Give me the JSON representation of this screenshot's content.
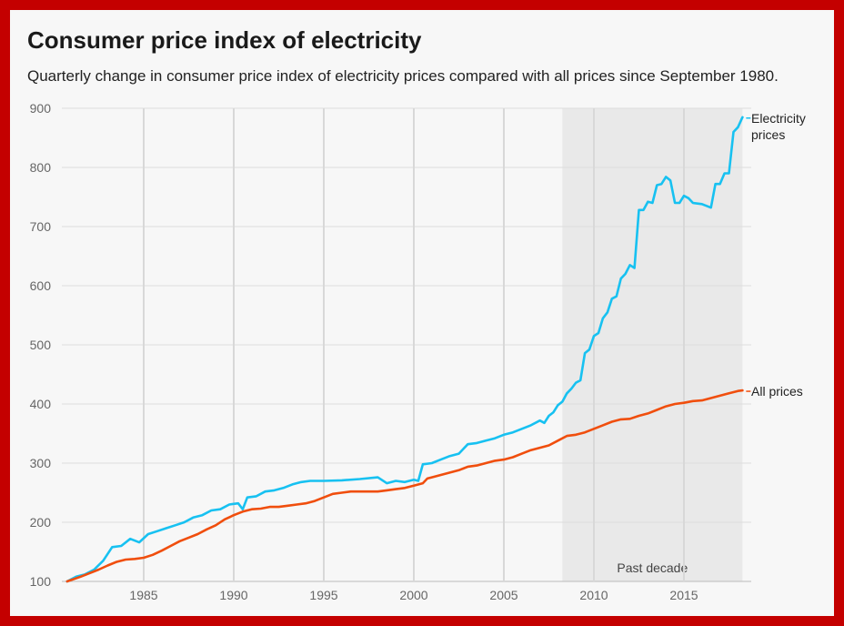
{
  "chart_data": {
    "type": "line",
    "title": "Consumer price index of electricity",
    "subtitle": "Quarterly change in consumer price index of electricity prices compared with all prices since September 1980.",
    "xlim": [
      1980.75,
      2018.5
    ],
    "ylim": [
      100,
      900
    ],
    "x_ticks": [
      "1985",
      "1990",
      "1995",
      "2000",
      "2005",
      "2010",
      "2015"
    ],
    "y_ticks": [
      "100",
      "200",
      "300",
      "400",
      "500",
      "600",
      "700",
      "800",
      "900"
    ],
    "grid": true,
    "shaded_region": {
      "label": "Past decade",
      "x_range": [
        2008.25,
        2018.25
      ]
    },
    "series": [
      {
        "name": "Electricity prices",
        "label_lines": [
          "Electricity",
          "prices"
        ],
        "color": "#17c1f1",
        "points": [
          [
            1980.75,
            100
          ],
          [
            1981.25,
            108
          ],
          [
            1981.75,
            112
          ],
          [
            1982.25,
            120
          ],
          [
            1982.75,
            135
          ],
          [
            1983.25,
            158
          ],
          [
            1983.75,
            160
          ],
          [
            1984.25,
            172
          ],
          [
            1984.75,
            166
          ],
          [
            1985.25,
            180
          ],
          [
            1985.75,
            185
          ],
          [
            1986.25,
            190
          ],
          [
            1986.75,
            195
          ],
          [
            1987.25,
            200
          ],
          [
            1987.75,
            208
          ],
          [
            1988.25,
            212
          ],
          [
            1988.75,
            220
          ],
          [
            1989.25,
            222
          ],
          [
            1989.75,
            230
          ],
          [
            1990.25,
            232
          ],
          [
            1990.5,
            222
          ],
          [
            1990.75,
            242
          ],
          [
            1991.25,
            244
          ],
          [
            1991.75,
            252
          ],
          [
            1992.25,
            254
          ],
          [
            1992.75,
            258
          ],
          [
            1993.25,
            264
          ],
          [
            1993.75,
            268
          ],
          [
            1994.25,
            270
          ],
          [
            1995,
            270
          ],
          [
            1996,
            271
          ],
          [
            1997,
            273
          ],
          [
            1998,
            276
          ],
          [
            1998.5,
            266
          ],
          [
            1999,
            270
          ],
          [
            1999.5,
            268
          ],
          [
            2000,
            272
          ],
          [
            2000.25,
            270
          ],
          [
            2000.5,
            298
          ],
          [
            2001,
            300
          ],
          [
            2001.5,
            306
          ],
          [
            2002,
            312
          ],
          [
            2002.5,
            316
          ],
          [
            2003,
            332
          ],
          [
            2003.5,
            334
          ],
          [
            2004,
            338
          ],
          [
            2004.5,
            342
          ],
          [
            2005,
            348
          ],
          [
            2005.5,
            352
          ],
          [
            2006,
            358
          ],
          [
            2006.5,
            364
          ],
          [
            2007,
            372
          ],
          [
            2007.25,
            368
          ],
          [
            2007.5,
            380
          ],
          [
            2007.75,
            386
          ],
          [
            2008,
            398
          ],
          [
            2008.25,
            404
          ],
          [
            2008.5,
            418
          ],
          [
            2008.75,
            426
          ],
          [
            2009,
            436
          ],
          [
            2009.25,
            440
          ],
          [
            2009.5,
            486
          ],
          [
            2009.75,
            492
          ],
          [
            2010,
            515
          ],
          [
            2010.25,
            520
          ],
          [
            2010.5,
            545
          ],
          [
            2010.75,
            555
          ],
          [
            2011,
            578
          ],
          [
            2011.25,
            582
          ],
          [
            2011.5,
            612
          ],
          [
            2011.75,
            620
          ],
          [
            2012,
            635
          ],
          [
            2012.25,
            630
          ],
          [
            2012.5,
            728
          ],
          [
            2012.75,
            728
          ],
          [
            2013,
            742
          ],
          [
            2013.25,
            740
          ],
          [
            2013.5,
            770
          ],
          [
            2013.75,
            772
          ],
          [
            2014,
            784
          ],
          [
            2014.25,
            778
          ],
          [
            2014.5,
            740
          ],
          [
            2014.75,
            740
          ],
          [
            2015,
            752
          ],
          [
            2015.25,
            748
          ],
          [
            2015.5,
            740
          ],
          [
            2016,
            738
          ],
          [
            2016.5,
            732
          ],
          [
            2016.75,
            772
          ],
          [
            2017,
            772
          ],
          [
            2017.25,
            790
          ],
          [
            2017.5,
            790
          ],
          [
            2017.75,
            860
          ],
          [
            2018,
            868
          ],
          [
            2018.25,
            885
          ]
        ]
      },
      {
        "name": "All prices",
        "label_lines": [
          "All prices"
        ],
        "color": "#f04e0d",
        "points": [
          [
            1980.75,
            100
          ],
          [
            1981.5,
            108
          ],
          [
            1982,
            114
          ],
          [
            1982.5,
            120
          ],
          [
            1983,
            127
          ],
          [
            1983.5,
            133
          ],
          [
            1984,
            137
          ],
          [
            1984.5,
            138
          ],
          [
            1985,
            140
          ],
          [
            1985.5,
            145
          ],
          [
            1986,
            152
          ],
          [
            1986.5,
            160
          ],
          [
            1987,
            168
          ],
          [
            1987.5,
            174
          ],
          [
            1988,
            180
          ],
          [
            1988.5,
            188
          ],
          [
            1989,
            195
          ],
          [
            1989.5,
            205
          ],
          [
            1990,
            212
          ],
          [
            1990.5,
            218
          ],
          [
            1991,
            222
          ],
          [
            1991.5,
            223
          ],
          [
            1992,
            226
          ],
          [
            1992.5,
            226
          ],
          [
            1993,
            228
          ],
          [
            1993.5,
            230
          ],
          [
            1994,
            232
          ],
          [
            1994.5,
            236
          ],
          [
            1995,
            242
          ],
          [
            1995.5,
            248
          ],
          [
            1996,
            250
          ],
          [
            1996.5,
            252
          ],
          [
            1997,
            252
          ],
          [
            1997.5,
            252
          ],
          [
            1998,
            252
          ],
          [
            1998.5,
            254
          ],
          [
            1999,
            256
          ],
          [
            1999.5,
            258
          ],
          [
            2000,
            262
          ],
          [
            2000.5,
            266
          ],
          [
            2000.75,
            274
          ],
          [
            2001,
            276
          ],
          [
            2001.5,
            280
          ],
          [
            2002,
            284
          ],
          [
            2002.5,
            288
          ],
          [
            2003,
            294
          ],
          [
            2003.5,
            296
          ],
          [
            2004,
            300
          ],
          [
            2004.5,
            304
          ],
          [
            2005,
            306
          ],
          [
            2005.5,
            310
          ],
          [
            2006,
            316
          ],
          [
            2006.5,
            322
          ],
          [
            2007,
            326
          ],
          [
            2007.5,
            330
          ],
          [
            2008,
            338
          ],
          [
            2008.5,
            346
          ],
          [
            2009,
            348
          ],
          [
            2009.5,
            352
          ],
          [
            2010,
            358
          ],
          [
            2010.5,
            364
          ],
          [
            2011,
            370
          ],
          [
            2011.5,
            374
          ],
          [
            2012,
            375
          ],
          [
            2012.5,
            380
          ],
          [
            2013,
            384
          ],
          [
            2013.5,
            390
          ],
          [
            2014,
            396
          ],
          [
            2014.5,
            400
          ],
          [
            2015,
            402
          ],
          [
            2015.5,
            405
          ],
          [
            2016,
            406
          ],
          [
            2016.5,
            410
          ],
          [
            2017,
            414
          ],
          [
            2017.5,
            418
          ],
          [
            2018,
            422
          ],
          [
            2018.25,
            423
          ]
        ]
      }
    ]
  }
}
